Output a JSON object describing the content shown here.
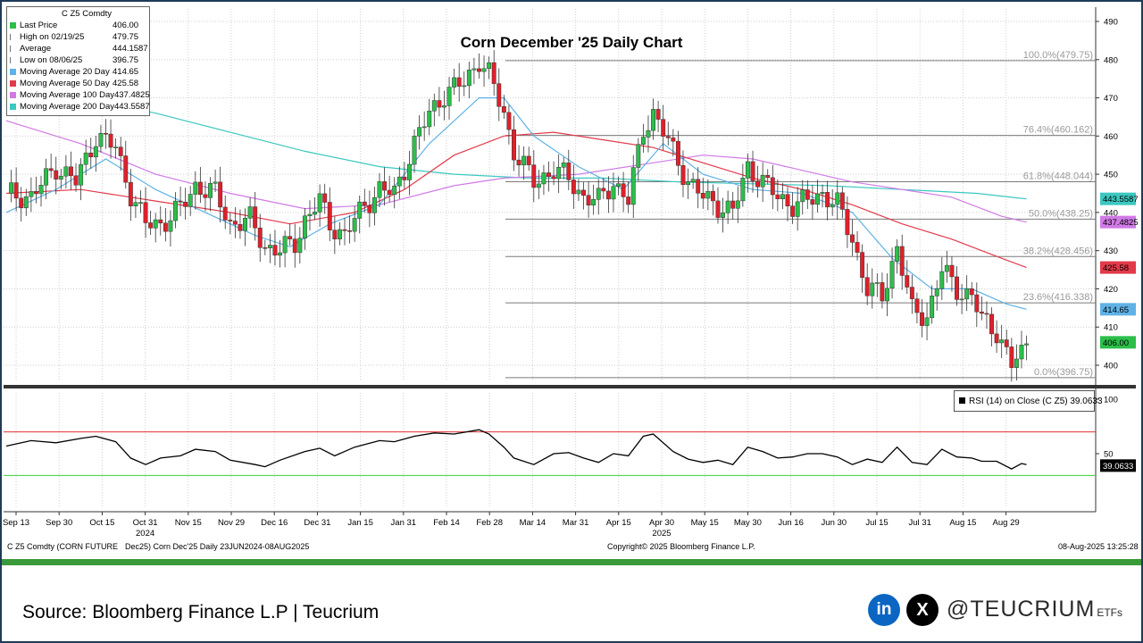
{
  "legend": {
    "header": "C Z5 Comdty",
    "items": [
      {
        "label": "Last Price",
        "value": "406.00",
        "color": "#2bbf4a"
      },
      {
        "label": "High on 02/19/25",
        "value": "479.75",
        "color": ""
      },
      {
        "label": "Average",
        "value": "444.1587",
        "color": ""
      },
      {
        "label": "Low on 08/06/25",
        "value": "396.75",
        "color": ""
      },
      {
        "label": "Moving Average 20 Day",
        "value": "414.65",
        "color": "#5fb2e6"
      },
      {
        "label": "Moving Average 50 Day",
        "value": "425.58",
        "color": "#e23a4a"
      },
      {
        "label": "Moving Average 100 Day",
        "value": "437.4825",
        "color": "#d07ae6"
      },
      {
        "label": "Moving Average 200 Day",
        "value": "443.5587",
        "color": "#3cc8c0"
      }
    ]
  },
  "rsi_label": "RSI (14)   on Close (C Z5) 39.0633",
  "footer": {
    "left": "C Z5 Comdty (CORN FUTURE",
    "mid": "Dec25) Corn Dec'25  Daily 23JUN2024-08AUG2025",
    "copyright": "Copyright© 2025 Bloomberg Finance L.P.",
    "timestamp": "08-Aug-2025 13:25:28"
  },
  "source": "Source: Bloomberg Finance L.P | Teucrium",
  "social": {
    "linkedin_icon": "in",
    "x_icon": "X",
    "handle": "@TEUCRIUM",
    "suffix": "ETFs"
  },
  "chart_data": {
    "type": "line",
    "title": "Corn December '25 Daily Chart",
    "price_axis": {
      "ylim": [
        394,
        492
      ],
      "ticks": [
        400,
        410,
        420,
        430,
        440,
        450,
        460,
        470,
        480,
        490
      ]
    },
    "rsi_axis": {
      "ticks": [
        50,
        100
      ],
      "overbought": 70,
      "oversold": 30
    },
    "x_ticks": [
      {
        "label": "Sep 13",
        "sub": ""
      },
      {
        "label": "Sep 30",
        "sub": ""
      },
      {
        "label": "Oct 15",
        "sub": ""
      },
      {
        "label": "Oct 31",
        "sub": "2024"
      },
      {
        "label": "Nov 15",
        "sub": ""
      },
      {
        "label": "Nov 29",
        "sub": ""
      },
      {
        "label": "Dec 16",
        "sub": ""
      },
      {
        "label": "Dec 31",
        "sub": ""
      },
      {
        "label": "Jan 15",
        "sub": ""
      },
      {
        "label": "Jan 31",
        "sub": ""
      },
      {
        "label": "Feb 14",
        "sub": ""
      },
      {
        "label": "Feb 28",
        "sub": ""
      },
      {
        "label": "Mar 14",
        "sub": ""
      },
      {
        "label": "Mar 31",
        "sub": ""
      },
      {
        "label": "Apr 15",
        "sub": ""
      },
      {
        "label": "Apr 30",
        "sub": "2025"
      },
      {
        "label": "May 15",
        "sub": ""
      },
      {
        "label": "May 30",
        "sub": ""
      },
      {
        "label": "Jun 16",
        "sub": ""
      },
      {
        "label": "Jun 30",
        "sub": ""
      },
      {
        "label": "Jul 15",
        "sub": ""
      },
      {
        "label": "Jul 31",
        "sub": ""
      },
      {
        "label": "Aug 15",
        "sub": ""
      },
      {
        "label": "Aug 29",
        "sub": ""
      }
    ],
    "fib_levels": [
      {
        "label": "100.0%(479.75)",
        "value": 479.75
      },
      {
        "label": "76.4%(460.162)",
        "value": 460.162
      },
      {
        "label": "61.8%(448.044)",
        "value": 448.044
      },
      {
        "label": "50.0%(438.25)",
        "value": 438.25
      },
      {
        "label": "38.2%(428.456)",
        "value": 428.456
      },
      {
        "label": "23.6%(416.338)",
        "value": 416.338
      },
      {
        "label": "0.0%(396.75)",
        "value": 396.75
      }
    ],
    "price_path": [
      [
        0,
        445
      ],
      [
        5,
        444
      ],
      [
        10,
        452
      ],
      [
        14,
        448
      ],
      [
        18,
        460
      ],
      [
        22,
        457
      ],
      [
        25,
        445
      ],
      [
        28,
        437
      ],
      [
        31,
        437
      ],
      [
        35,
        441
      ],
      [
        38,
        447
      ],
      [
        42,
        445
      ],
      [
        45,
        437
      ],
      [
        49,
        438
      ],
      [
        52,
        431
      ],
      [
        55,
        430
      ],
      [
        58,
        432
      ],
      [
        60,
        438
      ],
      [
        63,
        443
      ],
      [
        65,
        437
      ],
      [
        68,
        434
      ],
      [
        72,
        442
      ],
      [
        75,
        446
      ],
      [
        78,
        445
      ],
      [
        82,
        458
      ],
      [
        85,
        466
      ],
      [
        88,
        471
      ],
      [
        92,
        474
      ],
      [
        95,
        480
      ],
      [
        97,
        476
      ],
      [
        100,
        466
      ],
      [
        102,
        456
      ],
      [
        106,
        448
      ],
      [
        110,
        451
      ],
      [
        113,
        449
      ],
      [
        116,
        444
      ],
      [
        119,
        443
      ],
      [
        122,
        448
      ],
      [
        125,
        443
      ],
      [
        128,
        462
      ],
      [
        130,
        466
      ],
      [
        134,
        456
      ],
      [
        137,
        448
      ],
      [
        140,
        444
      ],
      [
        143,
        442
      ],
      [
        146,
        440
      ],
      [
        149,
        452
      ],
      [
        152,
        448
      ],
      [
        155,
        444
      ],
      [
        158,
        442
      ],
      [
        161,
        443
      ],
      [
        164,
        445
      ],
      [
        167,
        442
      ],
      [
        170,
        433
      ],
      [
        173,
        420
      ],
      [
        176,
        418
      ],
      [
        179,
        431
      ],
      [
        182,
        414
      ],
      [
        185,
        413
      ],
      [
        188,
        425
      ],
      [
        191,
        420
      ],
      [
        194,
        418
      ],
      [
        196,
        412
      ],
      [
        199,
        409
      ],
      [
        202,
        400
      ],
      [
        204,
        403
      ],
      [
        205,
        406
      ]
    ],
    "ma20": [
      [
        0,
        440
      ],
      [
        10,
        446
      ],
      [
        20,
        454
      ],
      [
        30,
        446
      ],
      [
        40,
        440
      ],
      [
        50,
        434
      ],
      [
        57,
        431
      ],
      [
        65,
        437
      ],
      [
        75,
        442
      ],
      [
        85,
        458
      ],
      [
        95,
        470
      ],
      [
        100,
        470
      ],
      [
        106,
        460
      ],
      [
        115,
        452
      ],
      [
        124,
        446
      ],
      [
        132,
        458
      ],
      [
        140,
        450
      ],
      [
        150,
        446
      ],
      [
        160,
        445
      ],
      [
        170,
        440
      ],
      [
        178,
        428
      ],
      [
        186,
        420
      ],
      [
        194,
        420
      ],
      [
        201,
        416
      ],
      [
        205,
        414.65
      ]
    ],
    "ma50": [
      [
        0,
        445
      ],
      [
        15,
        446
      ],
      [
        30,
        443
      ],
      [
        45,
        440
      ],
      [
        57,
        437
      ],
      [
        70,
        440
      ],
      [
        80,
        446
      ],
      [
        90,
        455
      ],
      [
        100,
        460
      ],
      [
        110,
        461
      ],
      [
        120,
        459
      ],
      [
        130,
        457
      ],
      [
        140,
        453
      ],
      [
        150,
        449
      ],
      [
        160,
        446
      ],
      [
        170,
        442
      ],
      [
        180,
        437
      ],
      [
        190,
        433
      ],
      [
        200,
        428
      ],
      [
        205,
        425.58
      ]
    ],
    "ma100": [
      [
        0,
        464
      ],
      [
        15,
        458
      ],
      [
        30,
        450
      ],
      [
        45,
        445
      ],
      [
        60,
        441
      ],
      [
        75,
        442
      ],
      [
        90,
        447
      ],
      [
        100,
        449
      ],
      [
        115,
        450
      ],
      [
        130,
        453
      ],
      [
        140,
        455
      ],
      [
        150,
        454
      ],
      [
        160,
        451
      ],
      [
        170,
        448
      ],
      [
        180,
        446
      ],
      [
        190,
        444
      ],
      [
        200,
        439
      ],
      [
        205,
        437.48
      ]
    ],
    "ma200": [
      [
        0,
        475
      ],
      [
        15,
        470
      ],
      [
        30,
        466
      ],
      [
        45,
        461
      ],
      [
        60,
        456
      ],
      [
        75,
        452
      ],
      [
        90,
        450
      ],
      [
        105,
        449
      ],
      [
        120,
        449
      ],
      [
        135,
        448
      ],
      [
        150,
        447.5
      ],
      [
        165,
        447
      ],
      [
        180,
        446
      ],
      [
        195,
        445
      ],
      [
        205,
        443.56
      ]
    ],
    "rsi_path": [
      [
        0,
        57
      ],
      [
        5,
        62
      ],
      [
        10,
        60
      ],
      [
        15,
        64
      ],
      [
        18,
        66
      ],
      [
        22,
        61
      ],
      [
        25,
        46
      ],
      [
        28,
        40
      ],
      [
        31,
        46
      ],
      [
        35,
        48
      ],
      [
        38,
        54
      ],
      [
        42,
        52
      ],
      [
        45,
        44
      ],
      [
        50,
        40
      ],
      [
        52,
        38
      ],
      [
        55,
        44
      ],
      [
        60,
        52
      ],
      [
        63,
        55
      ],
      [
        66,
        48
      ],
      [
        70,
        56
      ],
      [
        75,
        62
      ],
      [
        78,
        61
      ],
      [
        82,
        66
      ],
      [
        86,
        69
      ],
      [
        90,
        68
      ],
      [
        95,
        72
      ],
      [
        97,
        68
      ],
      [
        100,
        56
      ],
      [
        102,
        46
      ],
      [
        106,
        40
      ],
      [
        110,
        50
      ],
      [
        113,
        51
      ],
      [
        116,
        46
      ],
      [
        119,
        42
      ],
      [
        122,
        50
      ],
      [
        125,
        48
      ],
      [
        128,
        66
      ],
      [
        130,
        68
      ],
      [
        134,
        52
      ],
      [
        137,
        45
      ],
      [
        140,
        42
      ],
      [
        143,
        44
      ],
      [
        146,
        40
      ],
      [
        149,
        56
      ],
      [
        152,
        52
      ],
      [
        155,
        46
      ],
      [
        158,
        47
      ],
      [
        161,
        50
      ],
      [
        164,
        50
      ],
      [
        167,
        47
      ],
      [
        170,
        40
      ],
      [
        173,
        45
      ],
      [
        176,
        42
      ],
      [
        179,
        56
      ],
      [
        182,
        42
      ],
      [
        185,
        40
      ],
      [
        188,
        54
      ],
      [
        191,
        47
      ],
      [
        194,
        46
      ],
      [
        196,
        43
      ],
      [
        199,
        43
      ],
      [
        202,
        36
      ],
      [
        204,
        41
      ],
      [
        205,
        40
      ]
    ],
    "last_labels": [
      {
        "text": "443.5587",
        "value": 443.5587,
        "color": "#3cc8c0"
      },
      {
        "text": "437.4825",
        "value": 437.4825,
        "color": "#d07ae6"
      },
      {
        "text": "425.58",
        "value": 425.58,
        "color": "#e23a4a"
      },
      {
        "text": "414.65",
        "value": 414.65,
        "color": "#5fb2e6"
      },
      {
        "text": "406.00",
        "value": 406.0,
        "color": "#2bbf4a"
      }
    ],
    "rsi_last_label": {
      "text": "39.0633",
      "value": 39.0633
    }
  }
}
